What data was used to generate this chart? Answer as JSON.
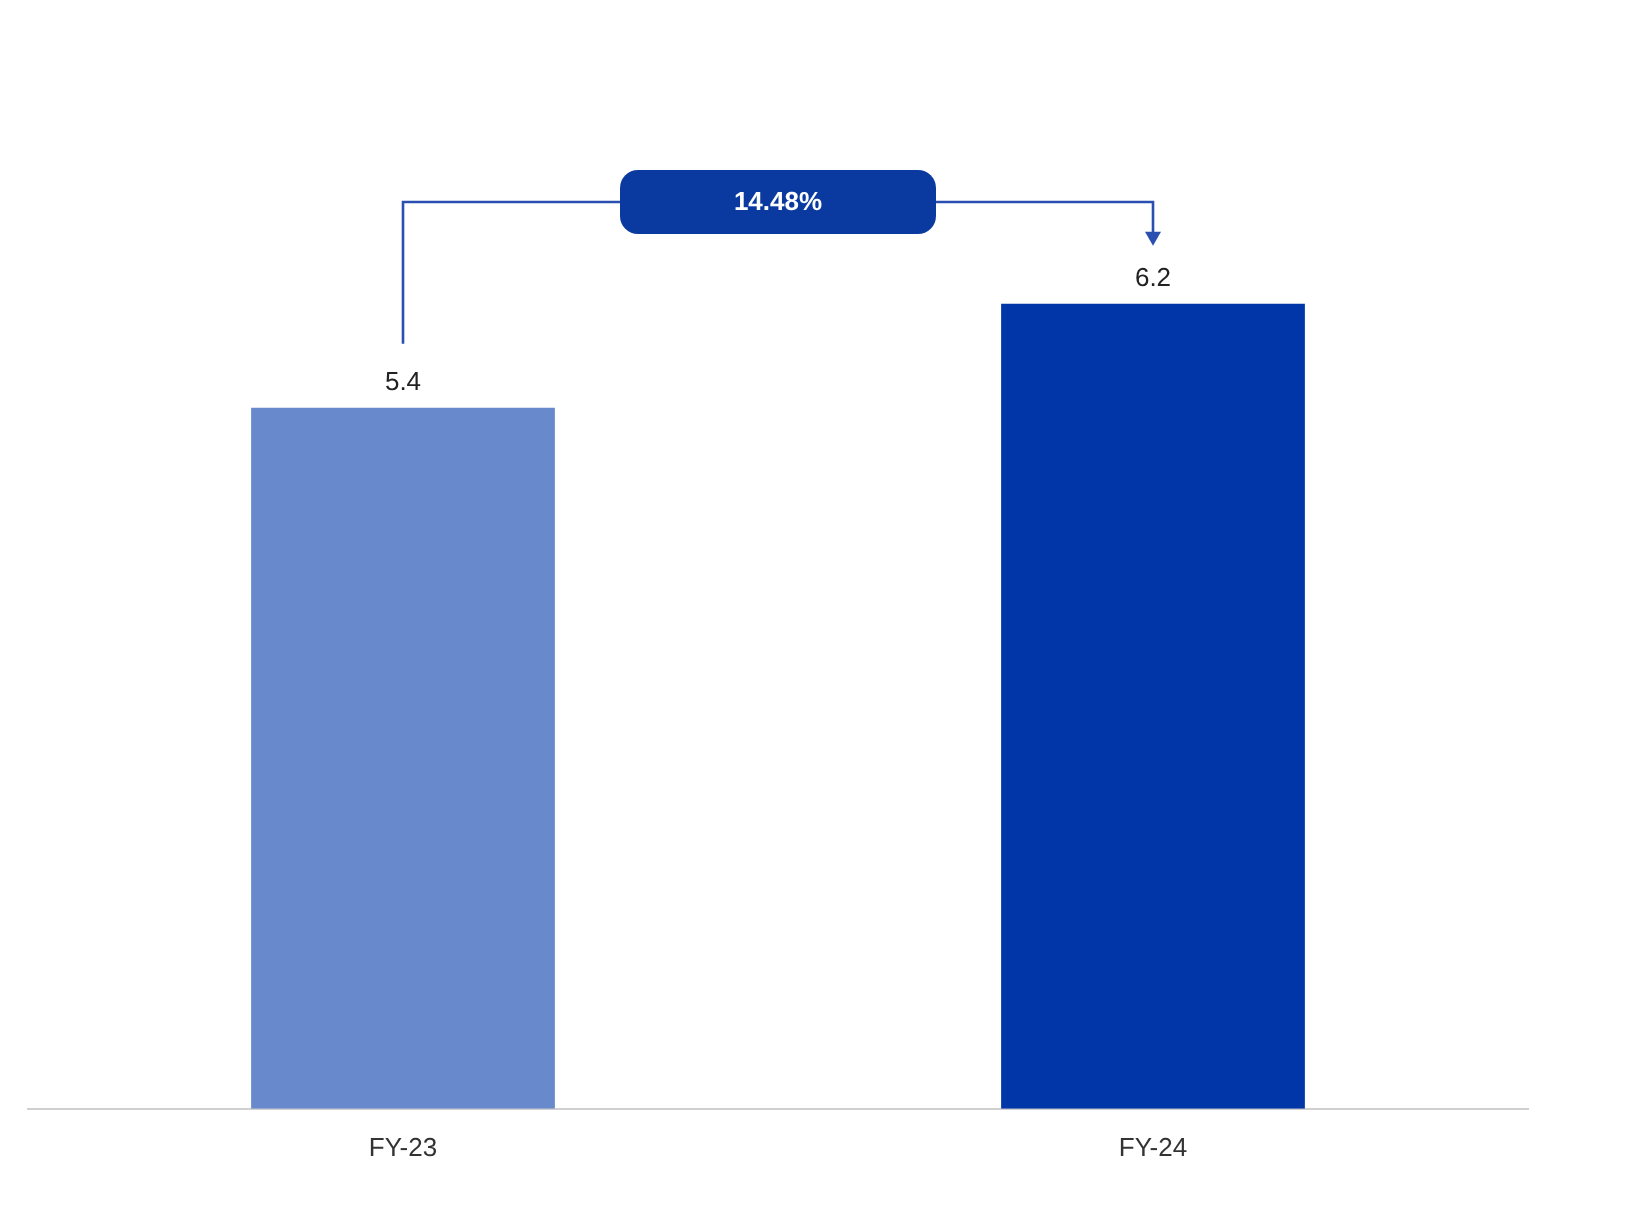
{
  "chart_data": {
    "type": "bar",
    "categories": [
      "FY-23",
      "FY-24"
    ],
    "values": [
      5.4,
      6.2
    ],
    "colors": [
      "#6889cc",
      "#0036a8"
    ],
    "data_labels": true,
    "grid": false,
    "legend": false,
    "annotations": [
      "14.48%"
    ]
  }
}
